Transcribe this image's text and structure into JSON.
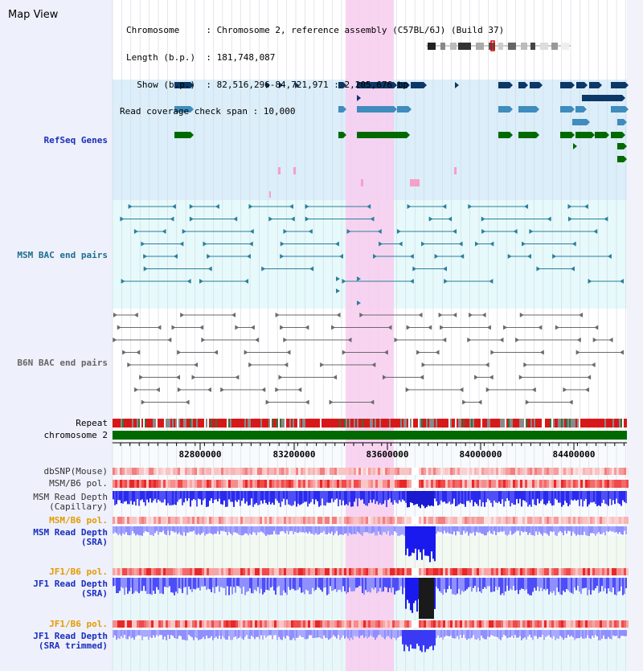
{
  "view_title": "Map View",
  "info": {
    "line1": "Chromosome     : Chromosome 2, reference assembly (C57BL/6J) (Build 37)",
    "line2": "Length (b.p.)  : 181,748,087",
    "line3": "  Show (b.p.)  : 82,516,296-84,721,971 : 2,205,676 bp",
    "line4": "Read coverage check span : 10,000"
  },
  "ruler_ticks": [
    "82800000",
    "83200000",
    "83600000",
    "84000000",
    "84400000"
  ],
  "tracks": {
    "refseq": "RefSeq Genes",
    "msm_bac": "MSM BAC end pairs",
    "b6n_bac": "B6N BAC end pairs",
    "repeat": "Repeat",
    "chromosome": "chromosome 2",
    "dbsnp": "dbSNP(Mouse)",
    "msm_b6_pol_1": "MSM/B6 pol.",
    "msm_read_depth_cap": "MSM Read Depth\n(Capillary)",
    "msm_b6_pol_2": "MSM/B6 pol.",
    "msm_read_depth_sra": "MSM Read Depth\n(SRA)",
    "jf1_b6_pol_1": "JF1/B6 pol.",
    "jf1_read_depth_sra": "JF1 Read Depth\n(SRA)",
    "jf1_b6_pol_2": "JF1/B6 pol.",
    "jf1_read_depth_trim": "JF1 Read Depth\n(SRA trimmed)"
  },
  "colors": {
    "refseq_bg": "#dbeefa",
    "msm_bac_bg": "#e6f9fb",
    "b6n_bac_bg": "#ffffff",
    "highlight": "#f8cdee",
    "gene_dark": "#0b3866",
    "gene_mid": "#3f8cbd",
    "gene_green": "#006a00",
    "bac_teal": "#2a7f9a",
    "b6n_grey": "#6a6a6a",
    "read_depth_blue": "#1a1aff",
    "read_depth_light": "#8f8fff",
    "chromosome_green": "#006a00"
  }
}
